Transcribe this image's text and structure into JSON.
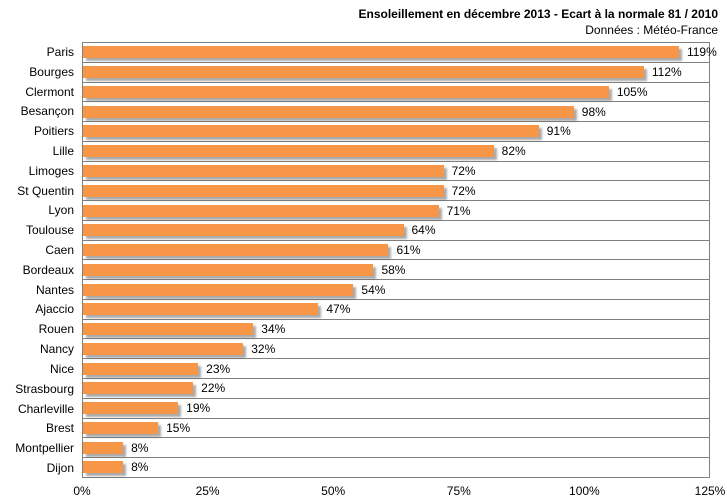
{
  "header": {
    "title": "Ensoleillement en décembre 2013 - Ecart à la normale 81 / 2010",
    "subtitle": "Données : Météo-France"
  },
  "chart_data": {
    "type": "bar",
    "orientation": "horizontal",
    "title": "Ensoleillement en décembre 2013 - Ecart à la normale 81 / 2010",
    "subtitle": "Données : Météo-France",
    "xlabel": "",
    "ylabel": "",
    "xlim": [
      0,
      125
    ],
    "grid": "category-separators-only",
    "legend": "none",
    "bar_color": "#F79646",
    "grid_color": "#808080",
    "categories": [
      "Paris",
      "Bourges",
      "Clermont",
      "Besançon",
      "Poitiers",
      "Lille",
      "Limoges",
      "St Quentin",
      "Lyon",
      "Toulouse",
      "Caen",
      "Bordeaux",
      "Nantes",
      "Ajaccio",
      "Rouen",
      "Nancy",
      "Nice",
      "Strasbourg",
      "Charleville",
      "Brest",
      "Montpellier",
      "Dijon"
    ],
    "values": [
      119,
      112,
      105,
      98,
      91,
      82,
      72,
      72,
      71,
      64,
      61,
      58,
      54,
      47,
      34,
      32,
      23,
      22,
      19,
      15,
      8,
      8
    ],
    "value_labels": [
      "119%",
      "112%",
      "105%",
      "98%",
      "91%",
      "82%",
      "72%",
      "72%",
      "71%",
      "64%",
      "61%",
      "58%",
      "54%",
      "47%",
      "34%",
      "32%",
      "23%",
      "22%",
      "19%",
      "15%",
      "8%",
      "8%"
    ],
    "x_ticks": [
      {
        "value": 0,
        "label": "0%"
      },
      {
        "value": 25,
        "label": "25%"
      },
      {
        "value": 50,
        "label": "50%"
      },
      {
        "value": 75,
        "label": "75%"
      },
      {
        "value": 100,
        "label": "100%"
      },
      {
        "value": 125,
        "label": "125%"
      }
    ]
  }
}
